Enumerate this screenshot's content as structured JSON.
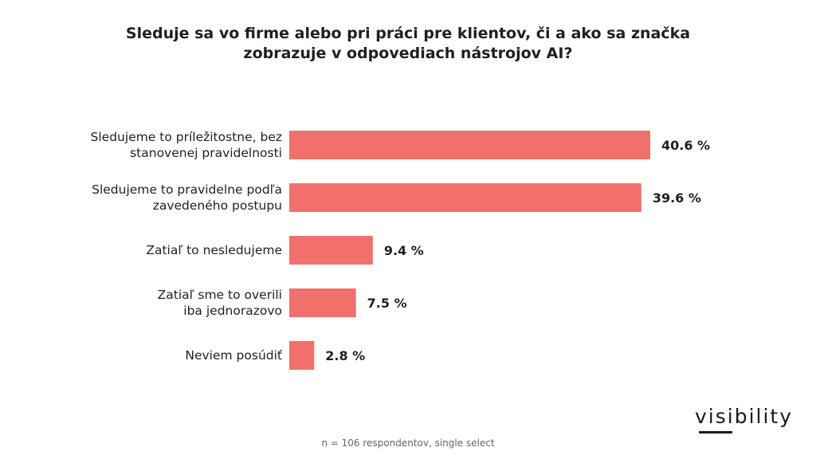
{
  "chart_data": {
    "type": "bar",
    "orientation": "horizontal",
    "title_lines": [
      "Sleduje sa vo firme alebo pri práci pre klientov, či a ako sa značka",
      "zobrazuje v odpovediach nástrojov AI?"
    ],
    "categories": [
      [
        "Sledujeme to príležitostne, bez",
        "stanovenej pravidelnosti"
      ],
      [
        "Sledujeme to pravidelne podľa",
        "zavedeného postupu"
      ],
      [
        "Zatiaľ to nesledujeme"
      ],
      [
        "Zatiaľ sme to overili",
        "iba jednorazovo"
      ],
      [
        "Neviem posúdiť"
      ]
    ],
    "values": [
      40.6,
      39.6,
      9.4,
      7.5,
      2.8
    ],
    "value_labels": [
      "40.6 %",
      "39.6 %",
      "9.4 %",
      "7.5 %",
      "2.8 %"
    ],
    "bar_color": "#f2706b",
    "grid": false,
    "legend": "none"
  },
  "footnote": "n = 106 respondentov, single select",
  "brand": "visibility"
}
